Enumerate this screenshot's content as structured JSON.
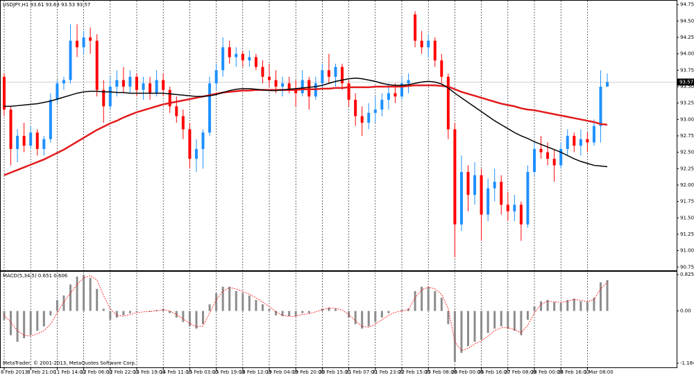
{
  "chart_data": [
    {
      "type": "candlestick",
      "title": "USDJPY,H1  93.61 93.63 93.53 93.57",
      "up_color": "#1e90ff",
      "down_color": "#ff0000",
      "categories": [
        "8 Feb 2013",
        null,
        null,
        null,
        "8 Feb 21:00",
        null,
        null,
        null,
        "11 Feb 14:00",
        null,
        null,
        null,
        "12 Feb 06:00",
        null,
        null,
        null,
        "12 Feb 22:00",
        null,
        null,
        null,
        "13 Feb 19:00",
        null,
        null,
        null,
        "14 Feb 11:00",
        null,
        null,
        null,
        "15 Feb 03:00",
        null,
        null,
        null,
        "15 Feb 19:00",
        null,
        null,
        null,
        "18 Feb 12:00",
        null,
        null,
        null,
        "19 Feb 04:00",
        null,
        null,
        null,
        "19 Feb 20:00",
        null,
        null,
        null,
        "20 Feb 15:00",
        null,
        null,
        null,
        "21 Feb 07:00",
        null,
        null,
        null,
        "21 Feb 23:00",
        null,
        null,
        null,
        "22 Feb 15:00",
        null,
        null,
        null,
        "25 Feb 08:00",
        null,
        null,
        null,
        "26 Feb 00:00",
        null,
        null,
        null,
        "26 Feb 16:00",
        null,
        null,
        null,
        "27 Feb 08:00",
        null,
        null,
        null,
        "28 Feb 00:00",
        null,
        null,
        null,
        "28 Feb 16:00",
        null,
        null,
        null,
        "1 Mar 08:00",
        null,
        null,
        null
      ],
      "open": [
        93.65,
        93.15,
        92.55,
        92.75,
        92.6,
        92.8,
        92.55,
        92.7,
        93.3,
        93.55,
        93.6,
        94.2,
        94.1,
        94.25,
        94.2,
        93.45,
        93.2,
        93.5,
        93.6,
        93.5,
        93.65,
        93.45,
        93.55,
        93.4,
        93.6,
        93.45,
        93.2,
        93.05,
        92.85,
        92.4,
        92.55,
        92.8,
        93.55,
        93.75,
        94.1,
        93.95,
        94.0,
        93.9,
        93.95,
        93.8,
        93.65,
        93.6,
        93.5,
        93.55,
        93.45,
        93.4,
        93.6,
        93.35,
        93.55,
        93.75,
        93.65,
        93.8,
        93.55,
        93.3,
        93.05,
        92.95,
        93.1,
        93.15,
        93.3,
        93.4,
        93.35,
        93.55,
        94.6,
        94.2,
        94.1,
        94.2,
        93.9,
        93.65,
        92.85,
        91.4,
        92.2,
        91.85,
        92.15,
        91.55,
        91.95,
        92.05,
        91.7,
        91.6,
        91.7,
        91.4,
        92.2,
        92.55,
        92.5,
        92.4,
        92.3,
        92.55,
        92.75,
        92.6,
        92.7,
        92.65,
        92.9,
        93.5
      ],
      "high": [
        93.7,
        93.2,
        92.85,
        92.95,
        92.9,
        92.85,
        92.75,
        93.4,
        93.6,
        93.65,
        94.45,
        94.45,
        94.35,
        94.4,
        94.3,
        93.6,
        93.65,
        93.75,
        93.8,
        93.75,
        93.7,
        93.65,
        93.65,
        93.75,
        93.7,
        93.5,
        93.35,
        93.15,
        92.95,
        92.7,
        92.85,
        93.65,
        93.85,
        94.25,
        94.2,
        94.1,
        94.05,
        94.05,
        94.0,
        93.9,
        93.85,
        93.75,
        93.65,
        93.65,
        93.6,
        93.75,
        93.65,
        93.65,
        93.85,
        94.0,
        93.85,
        93.85,
        93.6,
        93.4,
        93.2,
        93.25,
        93.35,
        93.4,
        93.55,
        93.55,
        93.65,
        93.7,
        94.65,
        94.35,
        94.3,
        94.25,
        94.0,
        93.7,
        92.95,
        92.45,
        92.3,
        92.35,
        92.25,
        92.1,
        92.25,
        92.15,
        91.9,
        91.85,
        91.75,
        92.3,
        92.65,
        92.75,
        92.65,
        92.55,
        92.65,
        92.85,
        92.8,
        92.85,
        92.8,
        93.0,
        93.75,
        93.7
      ],
      "low": [
        93.05,
        92.3,
        92.35,
        92.5,
        92.55,
        92.45,
        92.45,
        92.65,
        93.25,
        93.45,
        93.55,
        93.95,
        94.0,
        94.0,
        93.35,
        92.95,
        93.15,
        93.35,
        93.4,
        93.4,
        93.35,
        93.3,
        93.3,
        93.35,
        93.35,
        93.1,
        92.95,
        92.7,
        92.25,
        92.2,
        92.25,
        92.75,
        93.45,
        93.65,
        93.85,
        93.8,
        93.8,
        93.8,
        93.75,
        93.55,
        93.5,
        93.4,
        93.35,
        93.4,
        93.2,
        93.35,
        93.15,
        93.3,
        93.5,
        93.55,
        93.5,
        93.45,
        93.2,
        92.9,
        92.75,
        92.85,
        92.95,
        93.05,
        93.15,
        93.25,
        93.3,
        93.4,
        94.1,
        94.0,
        93.95,
        93.8,
        93.55,
        92.7,
        90.9,
        91.3,
        91.6,
        91.7,
        91.15,
        91.45,
        91.75,
        91.55,
        91.45,
        91.45,
        91.15,
        91.35,
        92.15,
        92.4,
        92.3,
        92.05,
        92.25,
        92.45,
        92.5,
        92.45,
        92.5,
        92.6,
        92.65,
        93.5
      ],
      "close": [
        93.15,
        92.55,
        92.75,
        92.6,
        92.8,
        92.55,
        92.7,
        93.3,
        93.55,
        93.6,
        94.2,
        94.1,
        94.25,
        94.2,
        93.45,
        93.2,
        93.5,
        93.6,
        93.5,
        93.65,
        93.45,
        93.55,
        93.4,
        93.6,
        93.45,
        93.2,
        93.05,
        92.85,
        92.4,
        92.55,
        92.8,
        93.55,
        93.75,
        94.1,
        93.95,
        94.0,
        93.9,
        93.95,
        93.8,
        93.65,
        93.6,
        93.5,
        93.55,
        93.45,
        93.4,
        93.6,
        93.35,
        93.55,
        93.75,
        93.65,
        93.8,
        93.55,
        93.3,
        93.05,
        92.95,
        93.1,
        93.15,
        93.3,
        93.4,
        93.35,
        93.55,
        93.6,
        94.2,
        94.1,
        94.2,
        93.9,
        93.65,
        92.85,
        91.4,
        92.2,
        91.85,
        92.15,
        91.55,
        91.95,
        92.05,
        91.7,
        91.6,
        91.7,
        91.4,
        92.2,
        92.55,
        92.5,
        92.4,
        92.3,
        92.55,
        92.75,
        92.6,
        92.7,
        92.65,
        92.9,
        93.5,
        93.57
      ],
      "overlays": [
        {
          "color": "#e31a1c",
          "values": [
            92.15,
            92.19,
            92.23,
            92.27,
            92.31,
            92.35,
            92.39,
            92.44,
            92.49,
            92.54,
            92.6,
            92.66,
            92.72,
            92.78,
            92.84,
            92.89,
            92.94,
            92.98,
            93.03,
            93.07,
            93.11,
            93.14,
            93.17,
            93.2,
            93.23,
            93.25,
            93.27,
            93.29,
            93.31,
            93.33,
            93.35,
            93.37,
            93.39,
            93.41,
            93.42,
            93.43,
            93.44,
            93.44,
            93.45,
            93.45,
            93.45,
            93.45,
            93.45,
            93.45,
            93.45,
            93.46,
            93.46,
            93.46,
            93.47,
            93.47,
            93.48,
            93.48,
            93.49,
            93.49,
            93.49,
            93.49,
            93.5,
            93.5,
            93.5,
            93.5,
            93.5,
            93.51,
            93.52,
            93.52,
            93.52,
            93.52,
            93.51,
            93.5,
            93.46,
            93.42,
            93.39,
            93.36,
            93.33,
            93.3,
            93.27,
            93.24,
            93.22,
            93.2,
            93.17,
            93.15,
            93.14,
            93.12,
            93.1,
            93.08,
            93.06,
            93.04,
            93.02,
            93.0,
            92.98,
            92.96,
            92.93,
            92.92
          ]
        },
        {
          "color": "#000000",
          "values": [
            93.2,
            93.2,
            93.21,
            93.22,
            93.23,
            93.24,
            93.26,
            93.28,
            93.31,
            93.34,
            93.37,
            93.4,
            93.42,
            93.43,
            93.43,
            93.42,
            93.42,
            93.41,
            93.41,
            93.4,
            93.4,
            93.4,
            93.4,
            93.4,
            93.4,
            93.39,
            93.38,
            93.37,
            93.36,
            93.35,
            93.35,
            93.36,
            93.38,
            93.41,
            93.44,
            93.46,
            93.47,
            93.47,
            93.46,
            93.45,
            93.44,
            93.44,
            93.45,
            93.46,
            93.47,
            93.48,
            93.49,
            93.5,
            93.52,
            93.55,
            93.58,
            93.6,
            93.62,
            93.63,
            93.62,
            93.6,
            93.58,
            93.55,
            93.53,
            93.52,
            93.52,
            93.53,
            93.55,
            93.57,
            93.58,
            93.57,
            93.54,
            93.48,
            93.4,
            93.33,
            93.26,
            93.19,
            93.12,
            93.05,
            92.98,
            92.92,
            92.86,
            92.8,
            92.75,
            92.71,
            92.66,
            92.62,
            92.58,
            92.54,
            92.5,
            92.45,
            92.4,
            92.36,
            92.33,
            92.3,
            92.29,
            92.28
          ]
        }
      ],
      "last_price": 93.57,
      "ylim": [
        90.7,
        94.81
      ],
      "yticks": [
        94.75,
        {
          "value": 94.5,
          "label": "94.50"
        },
        94.25,
        {
          "value": 94,
          "label": "94.00"
        },
        93.75,
        {
          "value": 93.5,
          "label": "93.50"
        },
        93.25,
        {
          "value": 93,
          "label": "93.00"
        },
        92.75,
        {
          "value": 92.5,
          "label": "92.50"
        },
        92.25,
        {
          "value": 92,
          "label": "92.00"
        },
        91.75,
        {
          "value": 91.5,
          "label": "91.50"
        },
        91.25,
        {
          "value": 91,
          "label": "91.00"
        },
        90.75
      ]
    },
    {
      "type": "macd",
      "title": "MACD(5,34,5) 0.651 0.606",
      "color": "#8c8c8c",
      "signal_color": "#ff0000",
      "values": [
        -0.2,
        -0.55,
        -0.7,
        -0.62,
        -0.55,
        -0.45,
        -0.35,
        -0.1,
        0.25,
        0.35,
        0.6,
        0.78,
        0.82,
        0.75,
        0.5,
        0.05,
        -0.2,
        -0.15,
        -0.1,
        -0.05,
        -0.02,
        0.0,
        -0.02,
        0.02,
        0.05,
        -0.05,
        -0.15,
        -0.25,
        -0.35,
        -0.4,
        -0.3,
        0.15,
        0.4,
        0.55,
        0.55,
        0.45,
        0.4,
        0.35,
        0.25,
        0.15,
        0.05,
        -0.1,
        -0.12,
        -0.12,
        -0.12,
        -0.05,
        -0.05,
        0.0,
        0.05,
        0.08,
        0.05,
        0.0,
        -0.15,
        -0.3,
        -0.4,
        -0.35,
        -0.25,
        -0.15,
        -0.05,
        0.0,
        0.02,
        0.05,
        0.45,
        0.55,
        0.55,
        0.45,
        0.3,
        -0.3,
        -1.15,
        -0.95,
        -0.8,
        -0.7,
        -0.65,
        -0.5,
        -0.4,
        -0.35,
        -0.4,
        -0.45,
        -0.55,
        -0.2,
        0.1,
        0.22,
        0.25,
        0.2,
        0.18,
        0.25,
        0.28,
        0.22,
        0.2,
        0.3,
        0.65,
        0.7
      ],
      "signal": [
        -0.1,
        -0.25,
        -0.45,
        -0.55,
        -0.57,
        -0.52,
        -0.45,
        -0.3,
        -0.05,
        0.2,
        0.4,
        0.6,
        0.75,
        0.8,
        0.7,
        0.35,
        0.05,
        -0.1,
        -0.12,
        -0.08,
        -0.04,
        -0.02,
        -0.01,
        0.0,
        0.03,
        0.0,
        -0.08,
        -0.18,
        -0.28,
        -0.36,
        -0.34,
        -0.05,
        0.25,
        0.45,
        0.53,
        0.5,
        0.44,
        0.38,
        0.3,
        0.2,
        0.1,
        -0.02,
        -0.1,
        -0.12,
        -0.12,
        -0.08,
        -0.06,
        -0.02,
        0.03,
        0.06,
        0.06,
        0.02,
        -0.08,
        -0.22,
        -0.35,
        -0.37,
        -0.3,
        -0.2,
        -0.1,
        -0.03,
        0.0,
        0.03,
        0.3,
        0.48,
        0.54,
        0.5,
        0.38,
        0.05,
        -0.7,
        -0.9,
        -0.85,
        -0.75,
        -0.68,
        -0.57,
        -0.45,
        -0.38,
        -0.38,
        -0.42,
        -0.5,
        -0.32,
        -0.05,
        0.15,
        0.22,
        0.21,
        0.19,
        0.22,
        0.26,
        0.24,
        0.21,
        0.26,
        0.5,
        0.65
      ],
      "ylim": [
        -1.28,
        0.89
      ],
      "yticks": [
        0.825,
        {
          "value": 0,
          "label": "0.00"
        },
        -1.184
      ]
    }
  ],
  "footer": "MetaTrader, © 2001-2013, MetaQuotes Software Corp."
}
